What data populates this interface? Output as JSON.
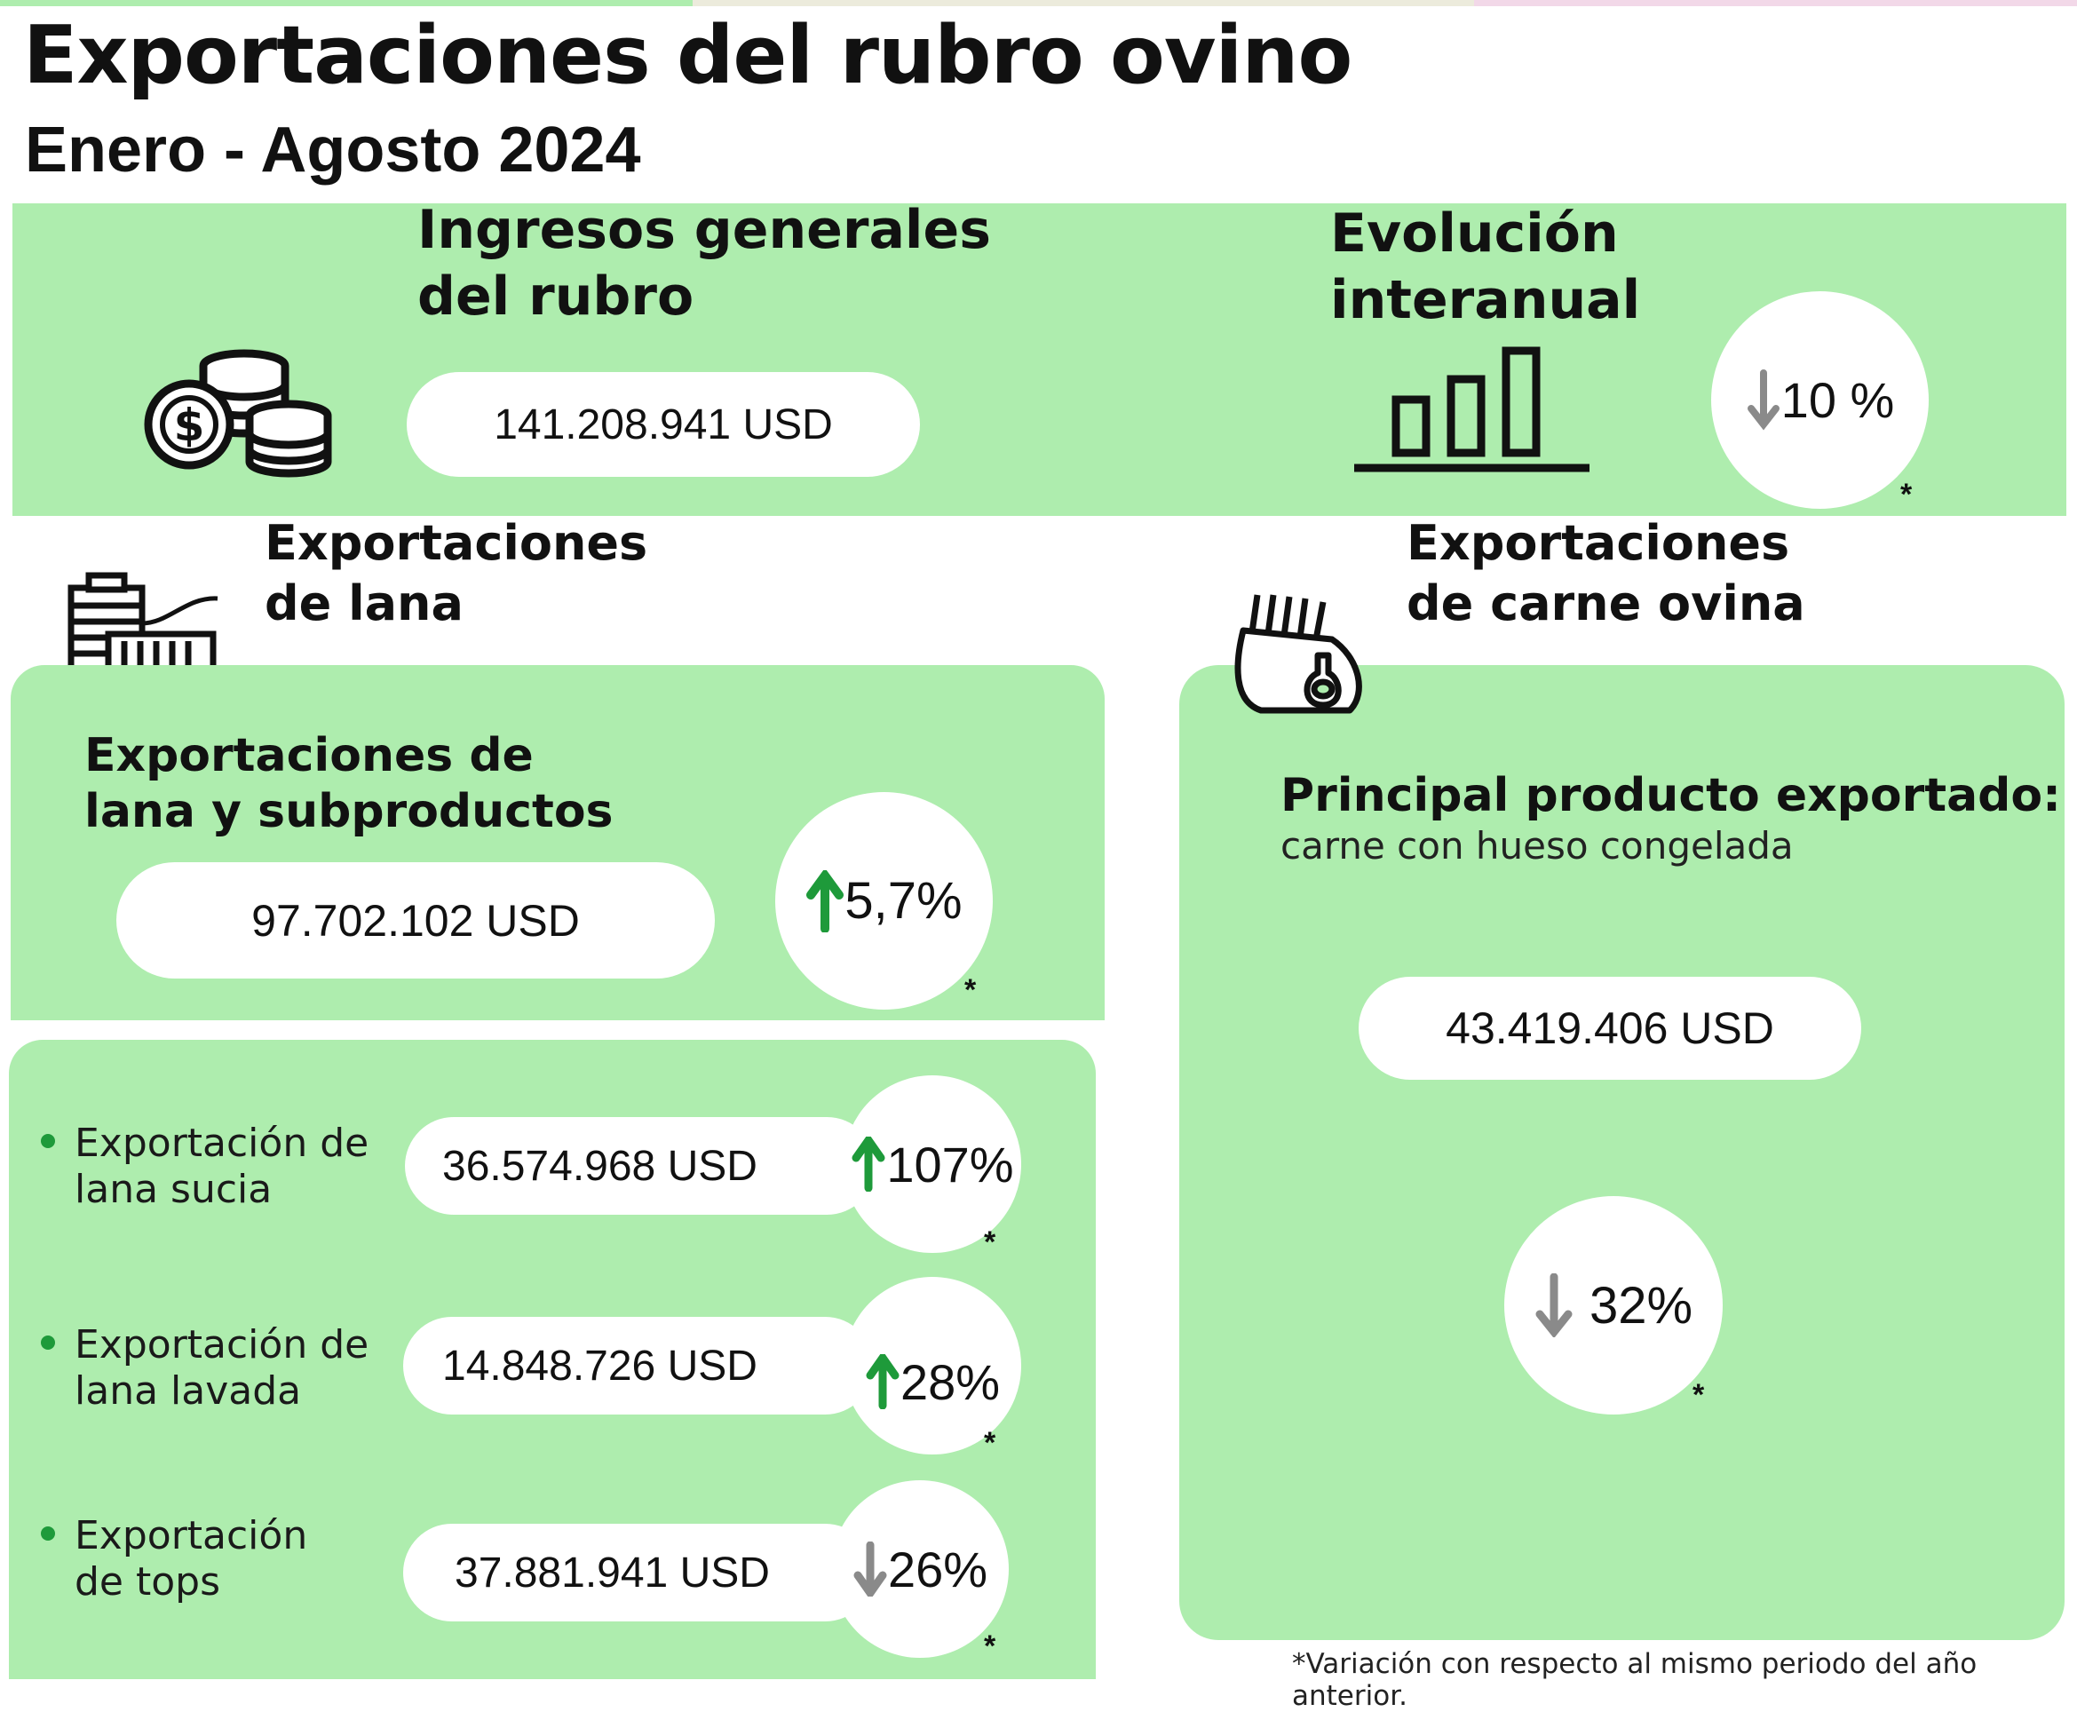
{
  "header": {
    "title": "Exportaciones del rubro ovino",
    "subtitle": "Enero - Agosto 2024"
  },
  "colors": {
    "panel": "#aeedae",
    "up_arrow": "#1e9a3a",
    "down_arrow": "#8a8a8a"
  },
  "ingresos": {
    "title_line1": "Ingresos generales",
    "title_line2": "del rubro",
    "value": "141.208.941 USD",
    "icon": "coins-dollar-icon"
  },
  "evolucion": {
    "title_line1": "Evolución",
    "title_line2": "interanual",
    "change": "10 %",
    "direction": "down",
    "star": "*",
    "icon": "bar-chart-icon"
  },
  "lana": {
    "title_line1": "Exportaciones",
    "title_line2": "de lana",
    "icon": "wool-spool-icon",
    "summary": {
      "title_line1": "Exportaciones de",
      "title_line2": "lana y subproductos",
      "value": "97.702.102 USD",
      "change": "5,7%",
      "direction": "up",
      "star": "*"
    },
    "items": [
      {
        "label_line1": "Exportación de",
        "label_line2": "lana sucia",
        "value": "36.574.968 USD",
        "change": "107%",
        "direction": "up",
        "star": "*"
      },
      {
        "label_line1": "Exportación de",
        "label_line2": "lana lavada",
        "value": "14.848.726 USD",
        "change": "28%",
        "direction": "up",
        "star": "*"
      },
      {
        "label_line1": "Exportación",
        "label_line2": "de tops",
        "value": "37.881.941 USD",
        "change": "26%",
        "direction": "down",
        "star": "*"
      }
    ]
  },
  "carne": {
    "title_line1": "Exportaciones",
    "title_line2": "de carne ovina",
    "icon": "lamb-meat-icon",
    "product_heading": "Principal producto exportado:",
    "product_name": "carne con hueso congelada",
    "value": "43.419.406 USD",
    "change": "32%",
    "direction": "down",
    "star": "*"
  },
  "footnote": "*Variación con respecto al mismo periodo del año anterior."
}
